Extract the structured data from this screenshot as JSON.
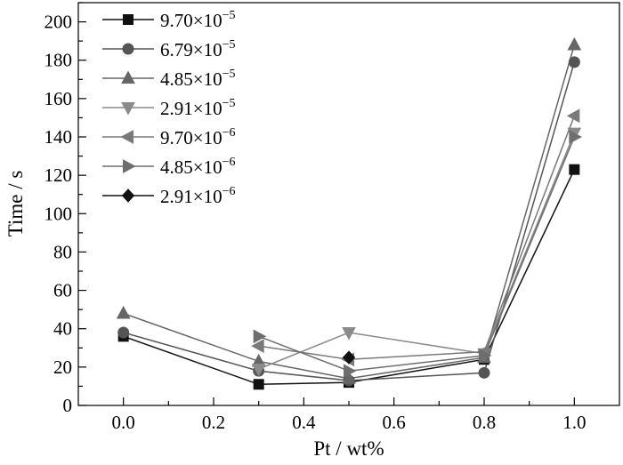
{
  "chart_data": {
    "type": "line",
    "xlabel": "Pt / wt%",
    "ylabel": "Time / s",
    "xlim": [
      -0.1,
      1.1
    ],
    "ylim": [
      0,
      210
    ],
    "xticks": [
      "0.0",
      "0.2",
      "0.4",
      "0.6",
      "0.8",
      "1.0"
    ],
    "yticks": [
      "0",
      "20",
      "40",
      "60",
      "80",
      "100",
      "120",
      "140",
      "160",
      "180",
      "200"
    ],
    "grid": false,
    "legend_position": "top-left",
    "series": [
      {
        "name": "9.70×10",
        "exp": "−5",
        "marker": "square",
        "color": "#111111",
        "x": [
          0.0,
          0.3,
          0.5,
          0.8,
          1.0
        ],
        "y": [
          36,
          11,
          12,
          24,
          123
        ]
      },
      {
        "name": "6.79×10",
        "exp": "−5",
        "marker": "circle",
        "color": "#555555",
        "x": [
          0.0,
          0.3,
          0.5,
          0.8,
          1.0
        ],
        "y": [
          38,
          18,
          13,
          17,
          179
        ]
      },
      {
        "name": "4.85×10",
        "exp": "−5",
        "marker": "triangle-up",
        "color": "#666666",
        "x": [
          0.0,
          0.3,
          0.5,
          0.8,
          1.0
        ],
        "y": [
          48,
          23,
          14,
          25,
          188
        ]
      },
      {
        "name": "2.91×10",
        "exp": "−5",
        "marker": "triangle-down",
        "color": "#8a8a8a",
        "x": [
          0.3,
          0.5,
          0.8,
          1.0
        ],
        "y": [
          19,
          38,
          27,
          142
        ]
      },
      {
        "name": "9.70×10",
        "exp": "−6",
        "marker": "triangle-left",
        "color": "#7a7a7a",
        "x": [
          0.3,
          0.5,
          0.8,
          1.0
        ],
        "y": [
          31,
          24,
          28,
          151
        ]
      },
      {
        "name": "4.85×10",
        "exp": "−6",
        "marker": "triangle-right",
        "color": "#6e6e6e",
        "x": [
          0.3,
          0.5,
          0.8,
          1.0
        ],
        "y": [
          36,
          18,
          26,
          140
        ]
      },
      {
        "name": "2.91×10",
        "exp": "−6",
        "marker": "diamond",
        "color": "#111111",
        "x": [
          0.5
        ],
        "y": [
          25
        ]
      }
    ]
  }
}
